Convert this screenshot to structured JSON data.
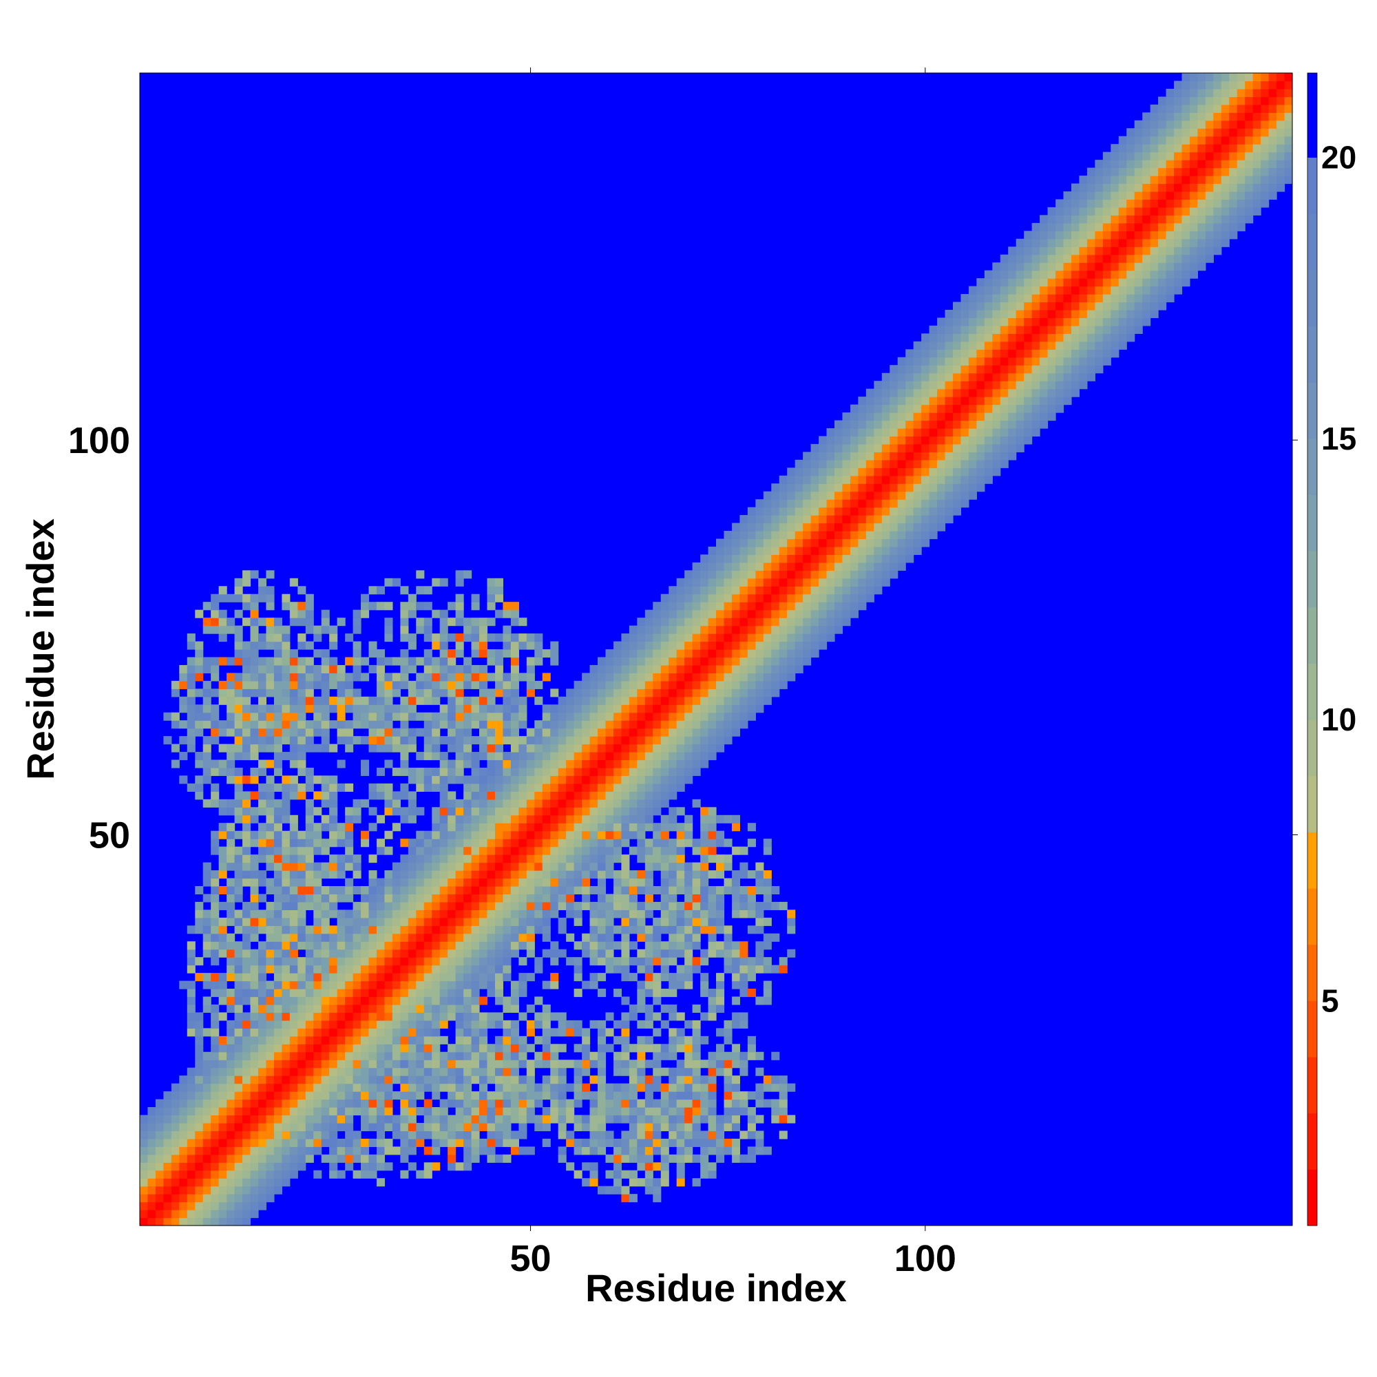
{
  "chart_data": {
    "type": "heatmap",
    "xlabel": "Residue index",
    "ylabel": "Residue index",
    "n_residues": 146,
    "xlim": [
      0.5,
      146.5
    ],
    "ylim": [
      0.5,
      146.5
    ],
    "x_ticks": [
      {
        "value": 50,
        "label": "50"
      },
      {
        "value": 100,
        "label": "100"
      }
    ],
    "y_ticks": [
      {
        "value": 50,
        "label": "50"
      },
      {
        "value": 100,
        "label": "100"
      }
    ],
    "colorbar": {
      "range": [
        1,
        21.5
      ],
      "ticks": [
        {
          "value": 5,
          "label": "5"
        },
        {
          "value": 10,
          "label": "10"
        },
        {
          "value": 15,
          "label": "15"
        },
        {
          "value": 20,
          "label": "20"
        }
      ],
      "colors": [
        {
          "max": 2,
          "color": "#ff0000"
        },
        {
          "max": 3,
          "color": "#ff1a00"
        },
        {
          "max": 4,
          "color": "#ff3300"
        },
        {
          "max": 5,
          "color": "#ff4f00"
        },
        {
          "max": 6,
          "color": "#ff6a00"
        },
        {
          "max": 7,
          "color": "#ff8400"
        },
        {
          "max": 8,
          "color": "#ffa000"
        },
        {
          "max": 9,
          "color": "#b6bd84"
        },
        {
          "max": 10,
          "color": "#a8b98c"
        },
        {
          "max": 11,
          "color": "#9db693"
        },
        {
          "max": 12,
          "color": "#91b09a"
        },
        {
          "max": 13,
          "color": "#85a8a5"
        },
        {
          "max": 14,
          "color": "#7ca1ae"
        },
        {
          "max": 15,
          "color": "#7699b6"
        },
        {
          "max": 16,
          "color": "#7092bb"
        },
        {
          "max": 17,
          "color": "#6b8cbf"
        },
        {
          "max": 18,
          "color": "#6688c2"
        },
        {
          "max": 19,
          "color": "#6384c5"
        },
        {
          "max": 20,
          "color": "#6080c8"
        },
        {
          "max": 99,
          "color": "#0000ff"
        }
      ]
    },
    "diagonal_band": {
      "width_residues": 14,
      "value_at_diagonal": 1,
      "value_per_residue_offset": 1.4
    },
    "contact_clusters": [
      {
        "center": [
          15,
          63
        ],
        "spread": [
          10,
          10
        ],
        "density": 0.8
      },
      {
        "center": [
          63,
          15
        ],
        "spread": [
          10,
          10
        ],
        "density": 0.8
      },
      {
        "center": [
          38,
          70
        ],
        "spread": [
          12,
          10
        ],
        "density": 0.7
      },
      {
        "center": [
          70,
          38
        ],
        "spread": [
          10,
          12
        ],
        "density": 0.7
      },
      {
        "center": [
          20,
          42
        ],
        "spread": [
          10,
          12
        ],
        "density": 0.85
      },
      {
        "center": [
          42,
          20
        ],
        "spread": [
          12,
          10
        ],
        "density": 0.85
      },
      {
        "center": [
          30,
          15
        ],
        "spread": [
          16,
          8
        ],
        "density": 0.8
      },
      {
        "center": [
          15,
          30
        ],
        "spread": [
          8,
          16
        ],
        "density": 0.8
      },
      {
        "center": [
          60,
          40
        ],
        "spread": [
          12,
          10
        ],
        "density": 0.7
      },
      {
        "center": [
          40,
          60
        ],
        "spread": [
          10,
          12
        ],
        "density": 0.7
      },
      {
        "center": [
          70,
          15
        ],
        "spread": [
          10,
          8
        ],
        "density": 0.75
      },
      {
        "center": [
          15,
          70
        ],
        "spread": [
          8,
          10
        ],
        "density": 0.75
      }
    ]
  }
}
